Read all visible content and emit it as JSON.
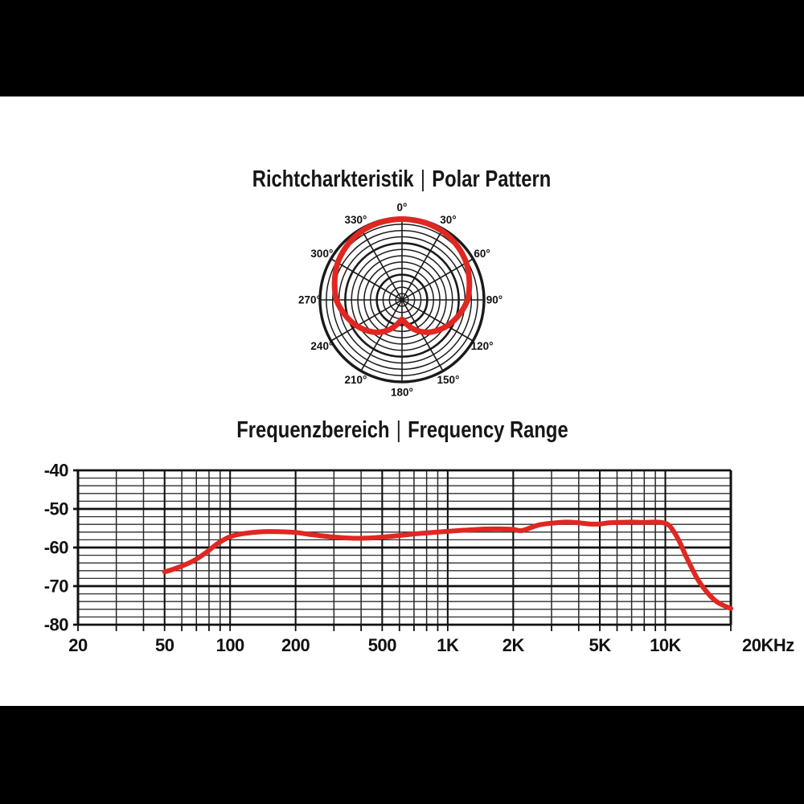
{
  "page": {
    "background": "#ffffff",
    "band_color": "#000000",
    "text_color": "#161616",
    "accent_red": "#e02722",
    "grid_color": "#1a1a1a"
  },
  "polar_section": {
    "title_de": "Richtcharkteristik",
    "separator": "|",
    "title_en": "Polar Pattern"
  },
  "freq_section": {
    "title_de": "Frequenzbereich",
    "separator": "|",
    "title_en": "Frequency Range"
  },
  "chart_data": [
    {
      "type": "polar",
      "title": "Richtcharkteristik | Polar Pattern",
      "pattern_name": "cardioid",
      "curve_color": "#e02722",
      "grid": {
        "rings": 13,
        "bold_rings": [
          4,
          9,
          13
        ],
        "spoke_step_deg": 30
      },
      "angle_labels": [
        "0°",
        "30°",
        "60°",
        "90°",
        "120°",
        "150°",
        "180°",
        "210°",
        "240°",
        "270°",
        "300°",
        "330°"
      ],
      "symmetric": true,
      "samples_theta_deg_r_fraction": [
        [
          0,
          0.985
        ],
        [
          10,
          0.983
        ],
        [
          20,
          0.98
        ],
        [
          30,
          0.972
        ],
        [
          40,
          0.955
        ],
        [
          50,
          0.932
        ],
        [
          60,
          0.905
        ],
        [
          70,
          0.868
        ],
        [
          80,
          0.833
        ],
        [
          90,
          0.8
        ],
        [
          100,
          0.745
        ],
        [
          110,
          0.69
        ],
        [
          120,
          0.635
        ],
        [
          130,
          0.575
        ],
        [
          140,
          0.515
        ],
        [
          150,
          0.445
        ],
        [
          160,
          0.37
        ],
        [
          170,
          0.295
        ],
        [
          175,
          0.262
        ],
        [
          180,
          0.238
        ]
      ]
    },
    {
      "type": "line",
      "title": "Frequenzbereich | Frequency Range",
      "x_scale": "log",
      "xlim": [
        20,
        20000
      ],
      "ylim": [
        -80,
        -40
      ],
      "y_major_step": 10,
      "y_minor_step": 2,
      "x_tick_labels": [
        "20",
        "50",
        "100",
        "200",
        "500",
        "1K",
        "2K",
        "5K",
        "10K",
        "20KHz"
      ],
      "x_tick_values": [
        20,
        50,
        100,
        200,
        500,
        1000,
        2000,
        5000,
        10000,
        20000
      ],
      "y_tick_labels": [
        "-40",
        "-50",
        "-60",
        "-70",
        "-80"
      ],
      "y_tick_values": [
        -40,
        -50,
        -60,
        -70,
        -80
      ],
      "grid_minor_x": [
        30,
        40,
        60,
        70,
        80,
        90,
        300,
        400,
        600,
        700,
        800,
        900,
        3000,
        4000,
        6000,
        7000,
        8000,
        9000
      ],
      "line_color": "#e02722",
      "points_hz_db": [
        [
          50,
          -66.3
        ],
        [
          55,
          -65.6
        ],
        [
          63,
          -64.3
        ],
        [
          70,
          -63.0
        ],
        [
          78,
          -61.2
        ],
        [
          88,
          -58.9
        ],
        [
          100,
          -57.2
        ],
        [
          115,
          -56.4
        ],
        [
          140,
          -55.9
        ],
        [
          170,
          -55.9
        ],
        [
          200,
          -56.1
        ],
        [
          240,
          -56.7
        ],
        [
          300,
          -57.3
        ],
        [
          370,
          -57.6
        ],
        [
          450,
          -57.5
        ],
        [
          550,
          -57.1
        ],
        [
          700,
          -56.5
        ],
        [
          850,
          -56.1
        ],
        [
          1000,
          -55.8
        ],
        [
          1200,
          -55.5
        ],
        [
          1500,
          -55.2
        ],
        [
          1800,
          -55.2
        ],
        [
          2000,
          -55.3
        ],
        [
          2200,
          -55.6
        ],
        [
          2600,
          -54.2
        ],
        [
          3000,
          -53.7
        ],
        [
          3500,
          -53.4
        ],
        [
          4000,
          -53.6
        ],
        [
          4500,
          -53.9
        ],
        [
          5000,
          -53.9
        ],
        [
          5500,
          -53.6
        ],
        [
          6000,
          -53.5
        ],
        [
          7000,
          -53.4
        ],
        [
          8000,
          -53.5
        ],
        [
          9000,
          -53.4
        ],
        [
          9800,
          -53.6
        ],
        [
          10500,
          -54.5
        ],
        [
          11500,
          -58.0
        ],
        [
          12500,
          -62.5
        ],
        [
          14000,
          -68.0
        ],
        [
          15500,
          -71.5
        ],
        [
          17000,
          -73.8
        ],
        [
          18500,
          -75.0
        ],
        [
          20000,
          -75.8
        ]
      ]
    }
  ]
}
